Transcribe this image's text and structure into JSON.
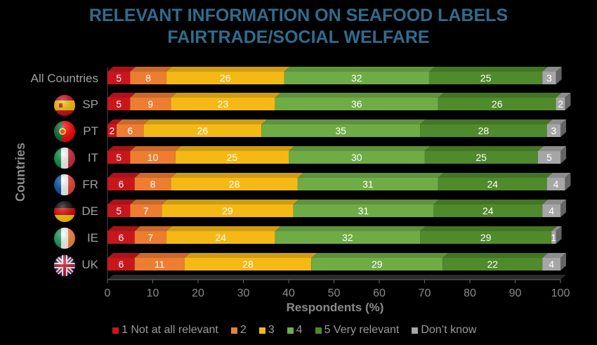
{
  "header": {
    "title_line1": "RELEVANT INFORMATION ON SEAFOOD LABELS",
    "title_line2": "FAIRTRADE/SOCIAL WELFARE"
  },
  "chart_data": {
    "type": "bar",
    "orientation": "horizontal",
    "stacked": true,
    "title": "RELEVANT INFORMATION ON SEAFOOD LABELS FAIRTRADE/SOCIAL WELFARE",
    "xlabel": "Respondents (%)",
    "ylabel": "Countries",
    "xlim": [
      0,
      100
    ],
    "x_ticks": [
      "0",
      "10",
      "20",
      "30",
      "40",
      "50",
      "60",
      "70",
      "80",
      "90",
      "100"
    ],
    "categories": [
      "All Countries",
      "SP",
      "PT",
      "IT",
      "FR",
      "DE",
      "IE",
      "UK"
    ],
    "flag_icons": [
      "",
      "spain-flag-icon",
      "portugal-flag-icon",
      "italy-flag-icon",
      "france-flag-icon",
      "germany-flag-icon",
      "ireland-flag-icon",
      "uk-flag-icon"
    ],
    "series": [
      {
        "name": "1 Not at all relevant",
        "color": "#c8161d",
        "values": [
          5,
          5,
          2,
          5,
          6,
          5,
          6,
          6
        ]
      },
      {
        "name": "2",
        "color": "#ed7d31",
        "values": [
          8,
          9,
          6,
          10,
          8,
          7,
          7,
          11
        ]
      },
      {
        "name": "3",
        "color": "#f5b915",
        "values": [
          26,
          23,
          26,
          25,
          28,
          29,
          24,
          28
        ]
      },
      {
        "name": "4",
        "color": "#6fac46",
        "values": [
          32,
          36,
          35,
          30,
          31,
          31,
          32,
          29
        ]
      },
      {
        "name": "5 Very relevant",
        "color": "#4f8a2c",
        "values": [
          25,
          26,
          28,
          25,
          24,
          24,
          29,
          22
        ]
      },
      {
        "name": "Don’t know",
        "color": "#a6a6a6",
        "values": [
          3,
          2,
          3,
          5,
          4,
          4,
          1,
          4
        ]
      }
    ],
    "legend_position": "bottom",
    "grid": false
  }
}
